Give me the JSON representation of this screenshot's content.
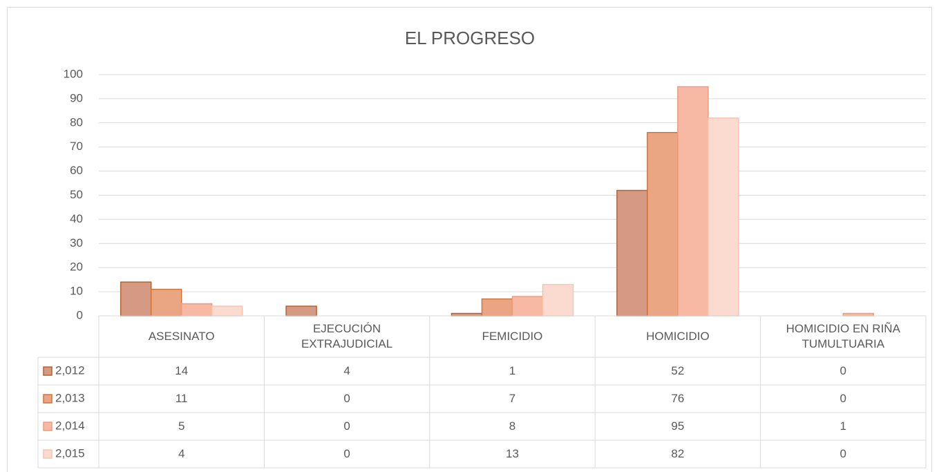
{
  "chart_data": {
    "type": "bar",
    "title": "EL PROGRESO",
    "categories": [
      "ASESINATO",
      "EJECUCIÓN EXTRAJUDICIAL",
      "FEMICIDIO",
      "HOMICIDIO",
      "HOMICIDIO EN RIÑA TUMULTUARIA"
    ],
    "series": [
      {
        "name": "2,012",
        "color": "#d49a84",
        "edgecolor": "#b8612f",
        "values": [
          14,
          4,
          1,
          52,
          0
        ]
      },
      {
        "name": "2,013",
        "color": "#eaa682",
        "edgecolor": "#d2733a",
        "values": [
          11,
          0,
          7,
          76,
          0
        ]
      },
      {
        "name": "2,014",
        "color": "#f7b9a3",
        "edgecolor": "#ef9c7c",
        "values": [
          5,
          0,
          8,
          95,
          1
        ]
      },
      {
        "name": "2,015",
        "color": "#fbdbcf",
        "edgecolor": "#f6c4b0",
        "values": [
          4,
          0,
          13,
          82,
          0
        ]
      }
    ],
    "ylim": [
      0,
      100
    ],
    "yticks": [
      0,
      10,
      20,
      30,
      40,
      50,
      60,
      70,
      80,
      90,
      100
    ],
    "grid": true,
    "legend": "table"
  }
}
